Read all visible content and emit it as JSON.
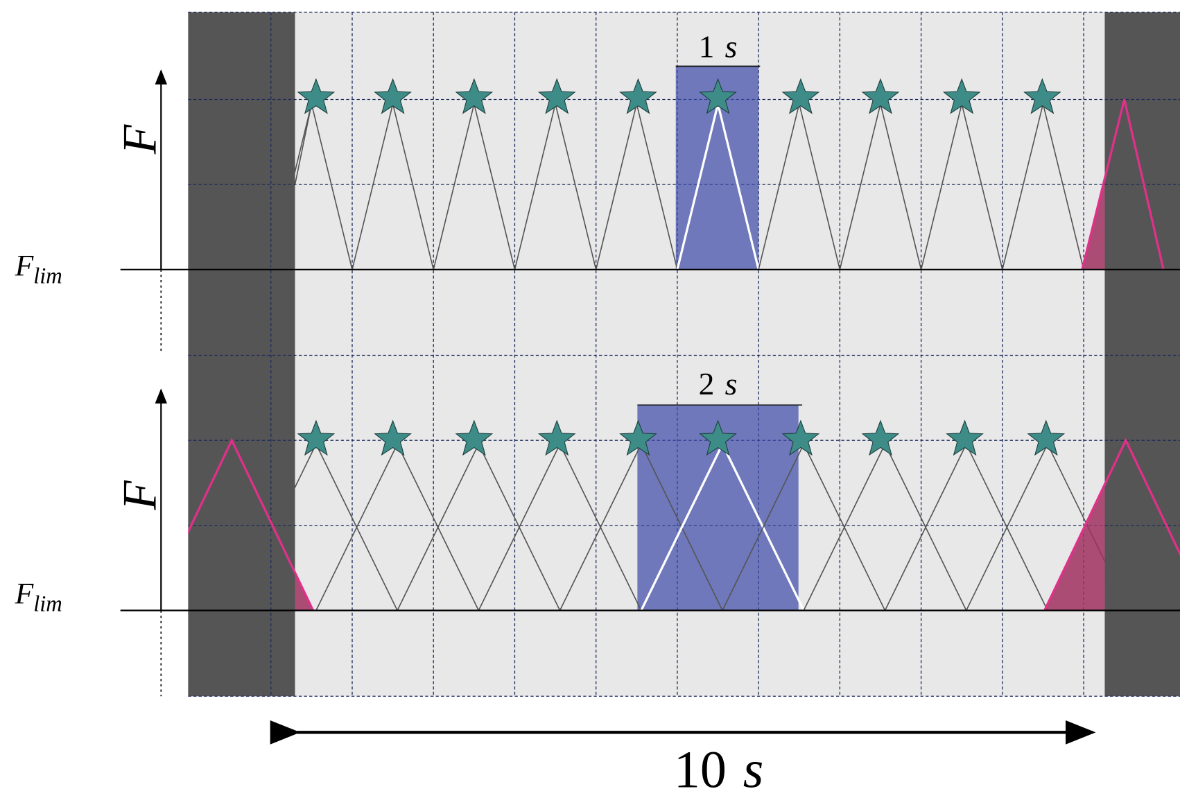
{
  "panels": [
    {
      "axis_label": "F",
      "limit_label": {
        "symbol": "F",
        "subscript": "lim"
      },
      "window_label": {
        "number": "1",
        "unit": "s"
      }
    },
    {
      "axis_label": "F",
      "limit_label": {
        "symbol": "F",
        "subscript": "lim"
      },
      "window_label": {
        "number": "2",
        "unit": "s"
      }
    }
  ],
  "span_label": {
    "number": "10",
    "unit": "s"
  }
}
